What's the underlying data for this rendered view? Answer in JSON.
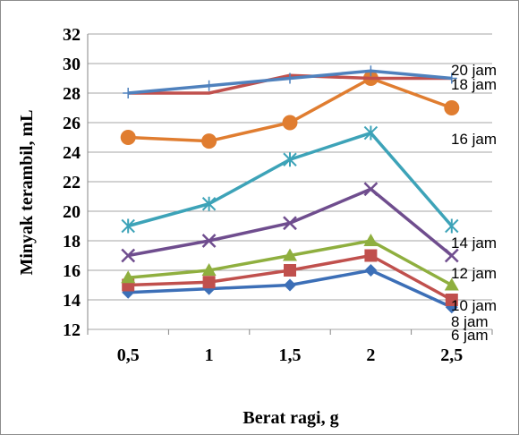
{
  "chart_data": {
    "type": "line",
    "categories": [
      "0,5",
      "1",
      "1,5",
      "2",
      "2,5"
    ],
    "x": [
      0.5,
      1,
      1.5,
      2,
      2.5
    ],
    "xlabel": "Berat ragi, g",
    "ylabel": "Minyak terambil, mL",
    "ylim": [
      12,
      32
    ],
    "yticks": [
      12,
      14,
      16,
      18,
      20,
      22,
      24,
      26,
      28,
      30,
      32
    ],
    "grid": "horizontal",
    "legend": "labels at right end of each line",
    "series": [
      {
        "name": "6 jam",
        "values": [
          14.5,
          14.75,
          15.0,
          16.0,
          13.5
        ],
        "color": "#3c6fb7",
        "marker": "diamond"
      },
      {
        "name": "8 jam",
        "values": [
          15.0,
          15.2,
          16.0,
          17.0,
          14.0
        ],
        "color": "#c0504d",
        "marker": "square"
      },
      {
        "name": "10 jam",
        "values": [
          15.5,
          16.0,
          17.0,
          18.0,
          15.0
        ],
        "color": "#8faf3f",
        "marker": "triangle"
      },
      {
        "name": "12 jam",
        "values": [
          17.0,
          18.0,
          19.2,
          21.5,
          17.0
        ],
        "color": "#6f4d8e",
        "marker": "x"
      },
      {
        "name": "14 jam",
        "values": [
          19.0,
          20.5,
          23.5,
          25.3,
          19.0
        ],
        "color": "#3da3b8",
        "marker": "star"
      },
      {
        "name": "16 jam",
        "values": [
          25.0,
          24.75,
          26.0,
          29.0,
          27.0
        ],
        "color": "#e07d30",
        "marker": "circle"
      },
      {
        "name": "18 jam",
        "values": [
          28.0,
          28.0,
          29.2,
          29.0,
          29.0
        ],
        "color": "#c0504d",
        "marker": "none"
      },
      {
        "name": "20 jam",
        "values": [
          28.0,
          28.5,
          29.0,
          29.5,
          29.0
        ],
        "color": "#4f81bd",
        "marker": "plus"
      }
    ]
  }
}
